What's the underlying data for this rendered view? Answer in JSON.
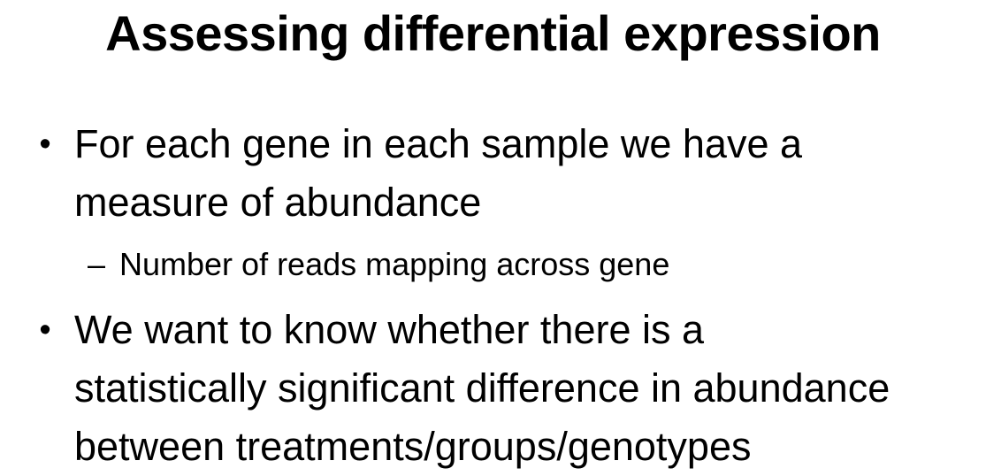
{
  "slide": {
    "title": "Assessing differential expression",
    "bullet_symbol": "•",
    "sub_bullet_symbol": "–",
    "bullets": [
      {
        "lines": [
          "For each gene in each sample we have a",
          "measure of abundance"
        ],
        "sub_bullets": [
          "Number of reads mapping across gene"
        ]
      },
      {
        "lines": [
          "We want to know whether there is a",
          "statistically significant difference in abundance",
          "between treatments/groups/genotypes"
        ]
      }
    ]
  }
}
